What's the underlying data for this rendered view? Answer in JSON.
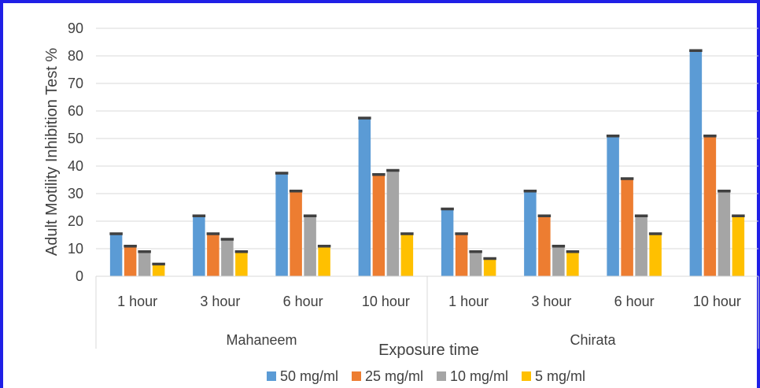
{
  "chart_data": {
    "type": "bar",
    "xlabel": "Exposure time",
    "ylabel": "Adult Motility Inhibition Test  %",
    "ylim": [
      0,
      90
    ],
    "yticks": [
      0,
      10,
      20,
      30,
      40,
      50,
      60,
      70,
      80,
      90
    ],
    "grid": true,
    "legend_position": "bottom",
    "groups": [
      {
        "name": "Mahaneem",
        "categories": [
          "1 hour",
          "3 hour",
          "6 hour",
          "10 hour"
        ]
      },
      {
        "name": "Chirata",
        "categories": [
          "1 hour",
          "3 hour",
          "6 hour",
          "10 hour"
        ]
      }
    ],
    "series": [
      {
        "name": "50 mg/ml",
        "color": "#5b9bd5",
        "values": [
          15.5,
          22,
          37.5,
          57.5,
          24.5,
          31,
          51,
          82
        ]
      },
      {
        "name": "25 mg/ml",
        "color": "#ed7d31",
        "values": [
          11,
          15.5,
          31,
          37,
          15.5,
          22,
          35.5,
          51
        ]
      },
      {
        "name": "10 mg/ml",
        "color": "#a5a5a5",
        "values": [
          9,
          13.5,
          22,
          38.5,
          9,
          11,
          22,
          31
        ]
      },
      {
        "name": "5 mg/ml",
        "color": "#ffc000",
        "values": [
          4.5,
          9,
          11,
          15.5,
          6.5,
          9,
          15.5,
          22
        ]
      }
    ]
  }
}
